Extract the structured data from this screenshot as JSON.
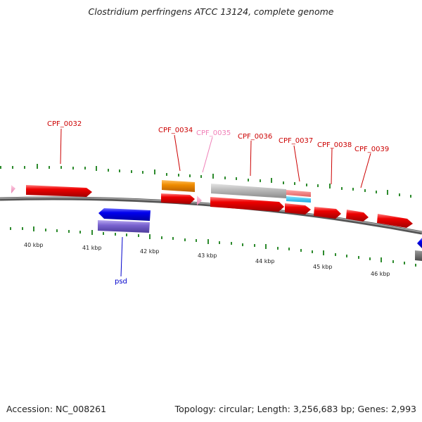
{
  "title": "Clostridium perfringens ATCC 13124, complete genome",
  "accession_text": "Accession: NC_008261",
  "summary_text": "Topology: circular; Length: 3,256,683 bp; Genes: 2,993",
  "colors": {
    "backbone": "#6e6e6e",
    "gene_cds": "#ee0000",
    "gene_cds_alt": "#0000ee",
    "gene_pink": "#f4a0c4",
    "orange_feature": "#f08c00",
    "purple_feature": "#7a64d0",
    "grey_feature": "#bdbdbd",
    "label_red": "#cc0000",
    "label_pink": "#f080b8",
    "label_blue": "#0000cc",
    "tick": "#2e8b2e"
  },
  "kbp_labels": [
    "40 kbp",
    "41 kbp",
    "42 kbp",
    "43 kbp",
    "44 kbp",
    "45 kbp",
    "46 kbp"
  ],
  "gene_labels": [
    {
      "text": "CPF_0032",
      "color": "label_red",
      "side": "top"
    },
    {
      "text": "CPF_0034",
      "color": "label_red",
      "side": "top"
    },
    {
      "text": "CPF_0035",
      "color": "label_pink",
      "side": "top"
    },
    {
      "text": "CPF_0036",
      "color": "label_red",
      "side": "top"
    },
    {
      "text": "CPF_0037",
      "color": "label_red",
      "side": "top"
    },
    {
      "text": "CPF_0038",
      "color": "label_red",
      "side": "top"
    },
    {
      "text": "CPF_0039",
      "color": "label_red",
      "side": "top"
    },
    {
      "text": "psd",
      "color": "label_blue",
      "side": "bottom"
    }
  ]
}
